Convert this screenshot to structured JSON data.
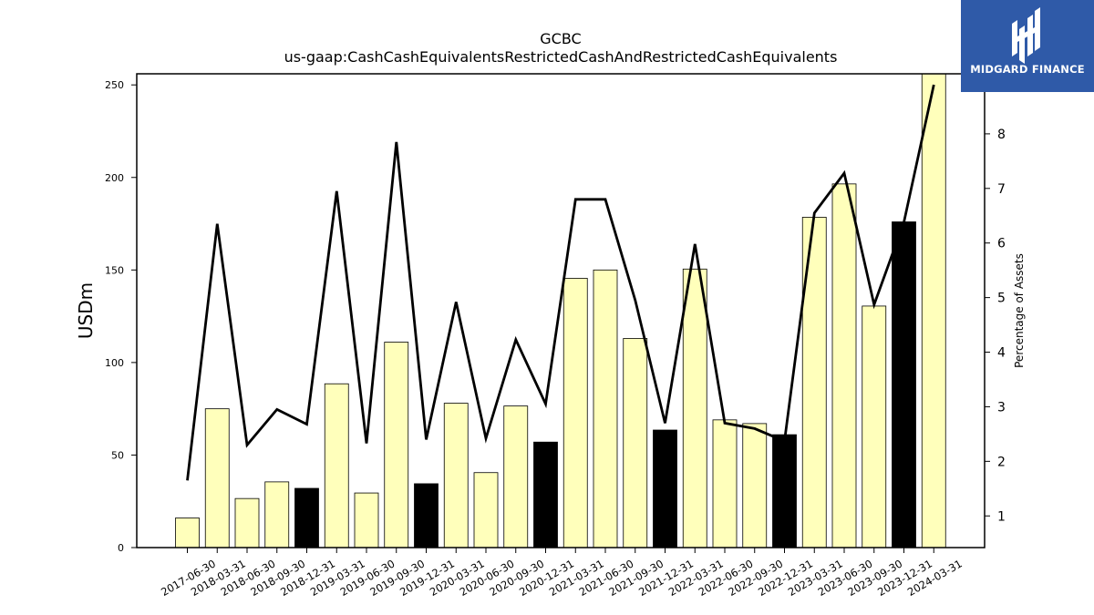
{
  "chart_data": {
    "type": "bar",
    "title": "GCBC",
    "subtitle": "us-gaap:CashCashEquivalentsRestrictedCashAndRestrictedCashEquivalents",
    "ylabel": "USDm",
    "y2label": "Percentage of Assets",
    "ylim": [
      0,
      256
    ],
    "y2lim": [
      0.42,
      9.1
    ],
    "yticks": [
      0,
      50,
      100,
      150,
      200,
      250
    ],
    "y2ticks": [
      1,
      2,
      3,
      4,
      5,
      6,
      7,
      8
    ],
    "categories": [
      "2017-06-30",
      "2018-03-31",
      "2018-06-30",
      "2018-09-30",
      "2018-12-31",
      "2019-03-31",
      "2019-06-30",
      "2019-09-30",
      "2019-12-31",
      "2020-03-31",
      "2020-06-30",
      "2020-09-30",
      "2020-12-31",
      "2021-03-31",
      "2021-06-30",
      "2021-09-30",
      "2021-12-31",
      "2022-03-31",
      "2022-06-30",
      "2022-09-30",
      "2022-12-31",
      "2023-03-31",
      "2023-06-30",
      "2023-09-30",
      "2023-12-31",
      "2024-03-31"
    ],
    "series": [
      {
        "type": "bar",
        "values": [
          16,
          75,
          26.5,
          35.5,
          32,
          88.5,
          29.5,
          111,
          34.5,
          78,
          40.5,
          76.5,
          57,
          145.5,
          150,
          113,
          63.5,
          150.5,
          69,
          67,
          61,
          178.5,
          196.5,
          130.5,
          176,
          256
        ],
        "highlight": [
          false,
          false,
          false,
          false,
          true,
          false,
          false,
          false,
          true,
          false,
          false,
          false,
          true,
          false,
          false,
          false,
          true,
          false,
          false,
          false,
          true,
          false,
          false,
          false,
          true,
          false
        ],
        "color": "#ffffbb",
        "highlight_color": "#000000"
      },
      {
        "type": "line",
        "axis": "right",
        "values": [
          1.65,
          6.35,
          2.3,
          2.95,
          2.68,
          6.95,
          2.33,
          7.85,
          2.4,
          4.92,
          2.42,
          4.23,
          3.05,
          6.8,
          6.8,
          4.95,
          2.7,
          5.98,
          2.7,
          2.6,
          2.37,
          6.55,
          7.28,
          4.87,
          6.38,
          8.9
        ],
        "color": "#000000"
      }
    ],
    "grid": false
  },
  "logo": {
    "text": "MIDGARD FINANCE",
    "background": "#2f5aa8",
    "icon": "midgard-logo-icon"
  }
}
